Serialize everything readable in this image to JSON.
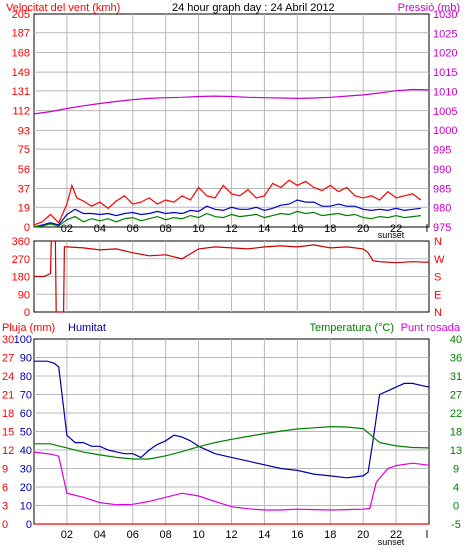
{
  "colors": {
    "wind": "#ff0000",
    "gust": "#0000cc",
    "wind_avg": "#008000",
    "pressure": "#cc00cc",
    "direction": "#cc0000",
    "rain": "#ff0000",
    "humidity": "#0000aa",
    "temperature": "#008000",
    "dewpoint": "#dd00dd",
    "grid": "#b8b8b8",
    "axis_left": "#ff0000",
    "axis_right": "#cc00cc"
  },
  "chart_data": [
    {
      "type": "line",
      "title": "24 hour graph day : 24 Abril 2012",
      "left_axis_label": "Velocitat del vent (kmh)",
      "right_axis_label": "Pressió (mb)",
      "x_ticks": [
        "02",
        "04",
        "06",
        "08",
        "10",
        "12",
        "14",
        "16",
        "18",
        "20",
        "22"
      ],
      "sunset_label": "sunset",
      "sunset_at": 20.6,
      "x_end_label": "l",
      "xlim": [
        0,
        24
      ],
      "left_ticks": [
        0,
        19,
        37,
        56,
        75,
        93,
        112,
        131,
        149,
        168,
        187,
        205
      ],
      "ylim_left": [
        0,
        205
      ],
      "right_ticks": [
        975,
        980,
        985,
        990,
        995,
        1000,
        1005,
        1010,
        1015,
        1020,
        1025,
        1030
      ],
      "ylim_right": [
        975,
        1030
      ],
      "series": [
        {
          "key": "wind",
          "axis": "left",
          "x": [
            0,
            0.5,
            1,
            1.5,
            2,
            2.3,
            2.6,
            3,
            3.5,
            4,
            4.5,
            5,
            5.5,
            6,
            6.5,
            7,
            7.5,
            8,
            8.5,
            9,
            9.5,
            10,
            10.5,
            11,
            11.5,
            12,
            12.5,
            13,
            13.5,
            14,
            14.5,
            15,
            15.5,
            16,
            16.5,
            17,
            17.5,
            18,
            18.5,
            19,
            19.5,
            20,
            20.5,
            21,
            21.5,
            22,
            22.5,
            23,
            23.5
          ],
          "y": [
            2,
            5,
            12,
            4,
            22,
            40,
            28,
            25,
            20,
            24,
            18,
            25,
            30,
            22,
            24,
            28,
            22,
            26,
            24,
            30,
            26,
            38,
            30,
            28,
            40,
            32,
            30,
            36,
            28,
            30,
            42,
            38,
            45,
            40,
            44,
            38,
            35,
            40,
            34,
            38,
            30,
            28,
            30,
            26,
            34,
            28,
            30,
            32,
            26
          ]
        },
        {
          "key": "gust",
          "axis": "left",
          "x": [
            0,
            0.5,
            1,
            1.5,
            2,
            2.5,
            3,
            3.5,
            4,
            4.5,
            5,
            5.5,
            6,
            6.5,
            7,
            7.5,
            8,
            8.5,
            9,
            9.5,
            10,
            10.5,
            11,
            11.5,
            12,
            12.5,
            13,
            13.5,
            14,
            14.5,
            15,
            15.5,
            16,
            16.5,
            17,
            17.5,
            18,
            18.5,
            19,
            19.5,
            20,
            20.5,
            21,
            21.5,
            22,
            22.5,
            23,
            23.5
          ],
          "y": [
            0,
            2,
            4,
            2,
            12,
            17,
            13,
            13,
            12,
            13,
            11,
            13,
            14,
            12,
            13,
            15,
            13,
            14,
            13,
            16,
            15,
            20,
            17,
            16,
            19,
            17,
            17,
            19,
            16,
            18,
            21,
            22,
            26,
            24,
            24,
            20,
            20,
            22,
            20,
            20,
            17,
            16,
            17,
            16,
            18,
            16,
            17,
            18
          ]
        },
        {
          "key": "wind_avg",
          "axis": "left",
          "x": [
            0,
            0.5,
            1,
            1.5,
            2,
            2.5,
            3,
            3.5,
            4,
            4.5,
            5,
            5.5,
            6,
            6.5,
            7,
            7.5,
            8,
            8.5,
            9,
            9.5,
            10,
            10.5,
            11,
            11.5,
            12,
            12.5,
            13,
            13.5,
            14,
            14.5,
            15,
            15.5,
            16,
            16.5,
            17,
            17.5,
            18,
            18.5,
            19,
            19.5,
            20,
            20.5,
            21,
            21.5,
            22,
            22.5,
            23,
            23.5
          ],
          "y": [
            0,
            1,
            3,
            1,
            7,
            10,
            5,
            8,
            6,
            8,
            5,
            8,
            9,
            6,
            8,
            10,
            7,
            9,
            8,
            11,
            9,
            13,
            10,
            9,
            12,
            10,
            11,
            12,
            9,
            11,
            13,
            12,
            15,
            13,
            14,
            11,
            12,
            13,
            11,
            12,
            9,
            8,
            10,
            9,
            11,
            9,
            10,
            11
          ]
        },
        {
          "key": "pressure",
          "axis": "right",
          "x": [
            0,
            1,
            2,
            3,
            4,
            5,
            6,
            7,
            8,
            9,
            10,
            11,
            12,
            13,
            14,
            15,
            16,
            17,
            18,
            19,
            20,
            21,
            22,
            23,
            24
          ],
          "y": [
            1004.2,
            1004.8,
            1005.6,
            1006.3,
            1006.9,
            1007.4,
            1007.9,
            1008.2,
            1008.4,
            1008.5,
            1008.7,
            1008.8,
            1008.7,
            1008.5,
            1008.4,
            1008.3,
            1008.2,
            1008.3,
            1008.5,
            1008.8,
            1009.1,
            1009.6,
            1010.2,
            1010.5,
            1010.4
          ]
        }
      ]
    },
    {
      "type": "line",
      "left_ticks": [
        0,
        90,
        180,
        270,
        360
      ],
      "ylim": [
        0,
        360
      ],
      "right_ticks": [
        "N",
        "W",
        "S",
        "E",
        "N"
      ],
      "series": [
        {
          "key": "direction",
          "axis": "left",
          "x": [
            0,
            0.6,
            1,
            1.05,
            1.3,
            1.35,
            1.8,
            1.85,
            2,
            3,
            4,
            5,
            6,
            7,
            8,
            9,
            10,
            11,
            12,
            13,
            14,
            15,
            16,
            17,
            18,
            19,
            20,
            20.3,
            20.6,
            21,
            22,
            23,
            24
          ],
          "y": [
            180,
            180,
            195,
            360,
            360,
            0,
            0,
            330,
            330,
            325,
            315,
            320,
            300,
            285,
            290,
            270,
            320,
            330,
            325,
            320,
            330,
            335,
            330,
            340,
            325,
            330,
            320,
            300,
            260,
            255,
            250,
            255,
            252
          ]
        }
      ]
    },
    {
      "type": "line",
      "label_rain": "Pluja (mm)",
      "label_humidity": "Humitat",
      "label_temperature": "Temperatura (°C)",
      "label_dewpoint": "Punt rosada",
      "left_ticks_rain": [
        0,
        3,
        6,
        9,
        12,
        15,
        18,
        21,
        24,
        27,
        30
      ],
      "ylim_rain": [
        0,
        30
      ],
      "left_ticks_humidity": [
        0,
        10,
        20,
        30,
        40,
        50,
        60,
        70,
        80,
        90,
        100
      ],
      "ylim_humidity": [
        0,
        100
      ],
      "right_ticks": [
        -5,
        0,
        4,
        9,
        13,
        18,
        22,
        27,
        31,
        36,
        40
      ],
      "ylim_right": [
        -5,
        40
      ],
      "series": [
        {
          "key": "rain",
          "axis": "rain",
          "x": [
            0,
            24
          ],
          "y": [
            0,
            0
          ]
        },
        {
          "key": "humidity",
          "axis": "humidity",
          "x": [
            0,
            0.8,
            1.2,
            1.5,
            2,
            2.5,
            3,
            3.5,
            4,
            4.5,
            5,
            5.5,
            6,
            6.5,
            7,
            7.5,
            8,
            8.5,
            9,
            9.5,
            10,
            11,
            12,
            13,
            14,
            15,
            16,
            17,
            18,
            19,
            20,
            20.3,
            20.6,
            21,
            21.5,
            22,
            22.5,
            23,
            23.5,
            24
          ],
          "y": [
            88,
            88,
            87,
            85,
            48,
            44,
            44,
            42,
            42,
            40,
            39,
            38,
            38,
            36,
            40,
            43,
            45,
            48,
            47,
            45,
            42,
            38,
            36,
            34,
            32,
            30,
            29,
            27,
            26,
            25,
            26,
            28,
            45,
            70,
            72,
            74,
            76,
            76,
            75,
            74
          ]
        },
        {
          "key": "temperature",
          "axis": "right",
          "x": [
            0,
            1,
            2,
            3,
            4,
            5,
            6,
            7,
            8,
            9,
            10,
            11,
            12,
            13,
            14,
            15,
            16,
            17,
            18,
            19,
            20,
            20.5,
            21,
            22,
            23,
            24
          ],
          "y": [
            14.5,
            14.5,
            13.5,
            12.5,
            11.8,
            11.2,
            10.8,
            10.8,
            11.6,
            12.6,
            13.8,
            14.8,
            15.6,
            16.3,
            17,
            17.6,
            18.1,
            18.4,
            18.7,
            18.6,
            18.2,
            16.5,
            14.8,
            14,
            13.6,
            13.5
          ]
        },
        {
          "key": "dewpoint",
          "axis": "right",
          "x": [
            0,
            1,
            1.5,
            2,
            3,
            4,
            5,
            6,
            7,
            8,
            9,
            10,
            11,
            12,
            13,
            14,
            15,
            16,
            17,
            18,
            19,
            20,
            20.4,
            20.8,
            21.5,
            22,
            23,
            24
          ],
          "y": [
            12.5,
            12,
            11.5,
            2.5,
            1.5,
            0.2,
            -0.3,
            -0.2,
            0.5,
            1.5,
            2.5,
            1.8,
            0.5,
            -0.8,
            -1.3,
            -1.6,
            -1.6,
            -1.4,
            -1.5,
            -1.6,
            -1.5,
            -1.4,
            -1.2,
            5.2,
            8.5,
            9.2,
            9.8,
            9.3
          ]
        }
      ]
    }
  ]
}
